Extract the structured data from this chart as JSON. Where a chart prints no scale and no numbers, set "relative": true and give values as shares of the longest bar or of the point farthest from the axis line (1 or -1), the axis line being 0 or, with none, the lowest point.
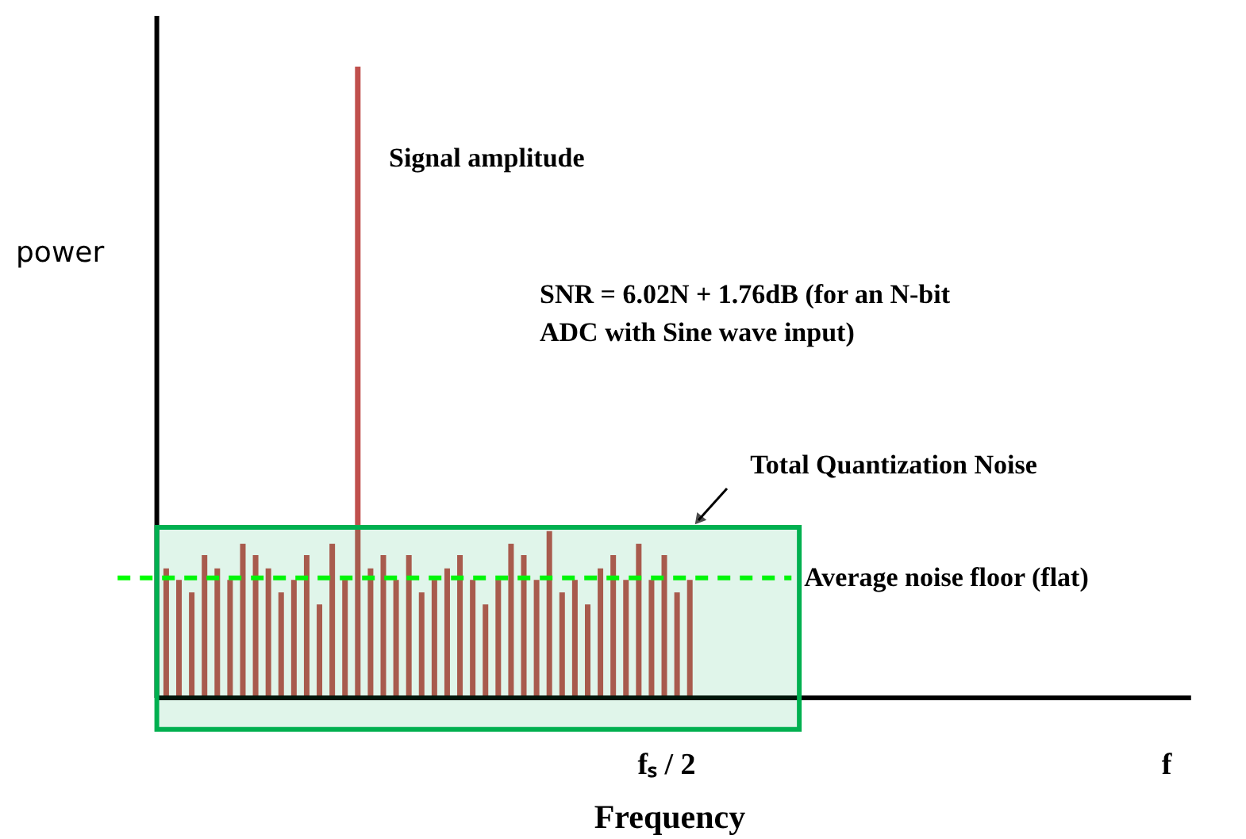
{
  "chart_data": {
    "type": "bar",
    "relative": true,
    "xlabel": "Frequency",
    "ylabel": "power",
    "categories": [
      null,
      null,
      null,
      null,
      null,
      null,
      null,
      null,
      null,
      null,
      null,
      null,
      null,
      null,
      null,
      null,
      null,
      null,
      null,
      null,
      null,
      null,
      null,
      null,
      null,
      null,
      null,
      null,
      null,
      null,
      null,
      null,
      null,
      null,
      null,
      null,
      null,
      null,
      null,
      null,
      null,
      null
    ],
    "values": [
      0.205,
      0.187,
      0.167,
      0.226,
      0.205,
      0.187,
      0.244,
      0.226,
      0.205,
      0.167,
      0.187,
      0.226,
      0.148,
      0.244,
      0.187,
      1,
      0.205,
      0.226,
      0.187,
      0.226,
      0.167,
      0.187,
      0.205,
      0.226,
      0.187,
      0.148,
      0.187,
      0.244,
      0.226,
      0.187,
      0.264,
      0.167,
      0.187,
      0.148,
      0.205,
      0.226,
      0.187,
      0.244,
      0.187,
      0.226,
      0.167,
      0.187
    ],
    "color": "#c0504d",
    "ref_lines": [
      {
        "axis": "y",
        "value": 0.19,
        "label": "Average noise floor (flat)",
        "color": "#00ff00",
        "line_style": "dashed"
      }
    ],
    "bands": [
      {
        "axis": "y",
        "from": -0.05,
        "to": 0.27,
        "label": "Total Quantization Noise",
        "color": "#00b050"
      }
    ],
    "annotations": [
      "Signal amplitude",
      "SNR = 6.02N + 1.76dB  (for an N-bit\nADC with Sine wave input)",
      "fₛ / 2",
      "f"
    ]
  }
}
